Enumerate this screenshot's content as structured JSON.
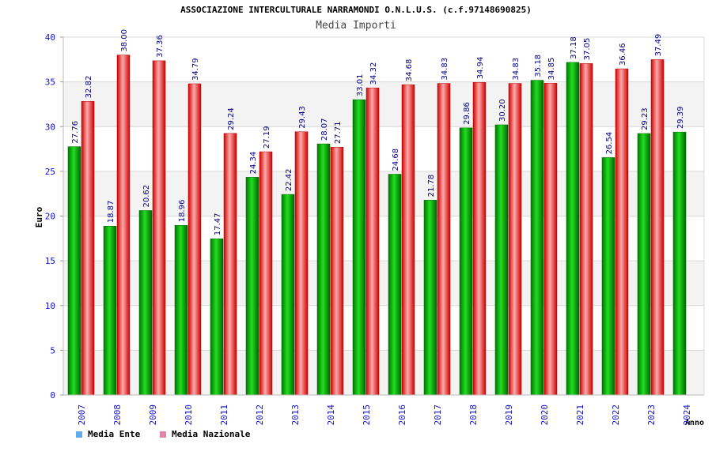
{
  "chart_data": {
    "type": "bar",
    "title": "ASSOCIAZIONE INTERCULTURALE NARRAMONDI O.N.L.U.S. (c.f.97148690825)",
    "subtitle": "Media Importi",
    "xlabel": "Anno",
    "ylabel": "Euro",
    "ylim": [
      0,
      40
    ],
    "yticks": [
      0,
      5,
      10,
      15,
      20,
      25,
      30,
      35,
      40
    ],
    "grid": true,
    "legend_position": "bottom-left",
    "categories": [
      "2007",
      "2008",
      "2009",
      "2010",
      "2011",
      "2012",
      "2013",
      "2014",
      "2015",
      "2016",
      "2017",
      "2018",
      "2019",
      "2020",
      "2021",
      "2022",
      "2023",
      "2024"
    ],
    "series": [
      {
        "name": "Media Ente",
        "color": "#00aa00",
        "values": [
          27.76,
          18.87,
          20.62,
          18.96,
          17.47,
          24.34,
          22.42,
          28.07,
          33.01,
          24.68,
          21.78,
          29.86,
          30.2,
          35.18,
          37.18,
          26.54,
          29.23,
          29.39
        ],
        "labels": [
          "27.76",
          "18.87",
          "20.62",
          "18.96",
          "17.47",
          "24.34",
          "22.42",
          "28.07",
          "33.01",
          "24.68",
          "21.78",
          "29.86",
          "30.20",
          "35.18",
          "37.18",
          "26.54",
          "29.23",
          "29.39"
        ]
      },
      {
        "name": "Media Nazionale",
        "color": "#ee2222",
        "values": [
          32.82,
          38.0,
          37.36,
          34.79,
          29.24,
          27.19,
          29.43,
          27.71,
          34.32,
          34.68,
          34.83,
          34.94,
          34.83,
          34.85,
          37.05,
          36.46,
          37.49,
          null
        ],
        "labels": [
          "32.82",
          "38.00",
          "37.36",
          "34.79",
          "29.24",
          "27.19",
          "29.43",
          "27.71",
          "34.32",
          "34.68",
          "34.83",
          "34.94",
          "34.83",
          "34.85",
          "37.05",
          "36.46",
          "37.49",
          ""
        ]
      }
    ],
    "legend_colors": {
      "Media Ente": "#66aaee",
      "Media Nazionale": "#dd88aa"
    }
  }
}
